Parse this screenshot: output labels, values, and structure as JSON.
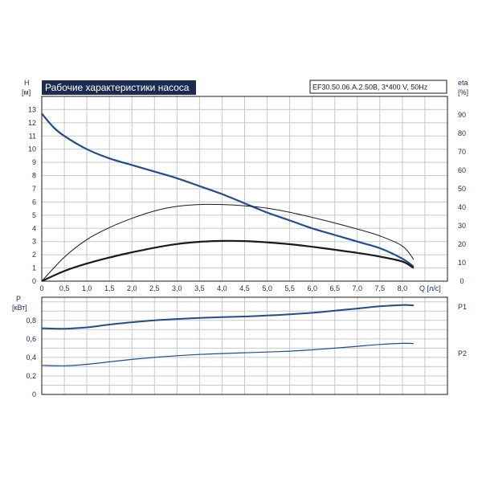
{
  "chart_data": [
    {
      "type": "line",
      "title": "Рабочие характеристики насоса",
      "model": "EF30.50.06.A.2.50B, 3*400 V, 50Hz",
      "xlabel": "Q [л/с]",
      "ylabel_left": [
        "H",
        "[м]"
      ],
      "ylabel_right": [
        "eta",
        "[%]"
      ],
      "xlim": [
        0,
        9
      ],
      "ylim_left": [
        0,
        14
      ],
      "ylim_right": [
        0,
        100
      ],
      "x_ticks": [
        "0",
        "0,5",
        "1,0",
        "1,5",
        "2,0",
        "2,5",
        "3,0",
        "3,5",
        "4,0",
        "4,5",
        "5,0",
        "5,5",
        "6,0",
        "6,5",
        "7,0",
        "7,5",
        "8,0"
      ],
      "y_left_ticks": [
        "0",
        "1",
        "2",
        "3",
        "4",
        "5",
        "6",
        "7",
        "8",
        "9",
        "10",
        "11",
        "12",
        "13"
      ],
      "y_right_ticks": [
        "0",
        "10",
        "20",
        "30",
        "40",
        "50",
        "60",
        "70",
        "80",
        "90"
      ],
      "grid": true,
      "series": [
        {
          "axis": "left",
          "color": "#1f4e8c",
          "x": [
            0,
            0.25,
            0.5,
            1.0,
            1.5,
            2.0,
            2.5,
            3.0,
            3.5,
            4.0,
            4.5,
            5.0,
            5.5,
            6.0,
            6.5,
            7.0,
            7.5,
            8.0,
            8.25
          ],
          "y": [
            12.7,
            11.7,
            11.0,
            10.0,
            9.3,
            8.8,
            8.3,
            7.8,
            7.2,
            6.6,
            5.9,
            5.2,
            4.6,
            4.0,
            3.5,
            3.0,
            2.5,
            1.7,
            1.1
          ]
        },
        {
          "axis": "right",
          "color": "#1a1a1a",
          "x": [
            0,
            0.5,
            1.0,
            1.5,
            2.0,
            2.5,
            3.0,
            3.5,
            4.0,
            4.5,
            5.0,
            5.5,
            6.0,
            6.5,
            7.0,
            7.5,
            8.0,
            8.25
          ],
          "y": [
            0,
            13,
            22.5,
            29,
            34,
            38,
            40.5,
            41.5,
            41.5,
            40.8,
            39.5,
            37.3,
            34.5,
            31.5,
            28.2,
            24.5,
            19,
            11.8
          ]
        },
        {
          "axis": "right",
          "color": "#1a1a1a",
          "x": [
            0,
            0.5,
            1.0,
            1.5,
            2.0,
            2.5,
            3.0,
            3.5,
            4.0,
            4.5,
            5.0,
            5.5,
            6.0,
            6.5,
            7.0,
            7.5,
            8.0,
            8.25
          ],
          "y": [
            0,
            5.5,
            9.5,
            12.8,
            15.6,
            18.1,
            20.1,
            21.3,
            21.8,
            21.7,
            21,
            20,
            18.6,
            17,
            15.3,
            13.3,
            10.6,
            7.1
          ]
        }
      ]
    },
    {
      "type": "line",
      "ylabel": [
        "P",
        "[кВт]"
      ],
      "xlim": [
        0,
        9
      ],
      "ylim": [
        0,
        1.05
      ],
      "y_ticks": [
        "0",
        "0,2",
        "0,4",
        "0,6",
        "0,8"
      ],
      "grid": true,
      "series": [
        {
          "name": "P1",
          "color": "#1f4e8c",
          "x": [
            0,
            0.5,
            1.0,
            1.5,
            2.0,
            2.5,
            3.0,
            3.5,
            4.0,
            4.5,
            5.0,
            5.5,
            6.0,
            6.5,
            7.0,
            7.5,
            8.0,
            8.25
          ],
          "y": [
            0.715,
            0.71,
            0.725,
            0.755,
            0.78,
            0.8,
            0.815,
            0.827,
            0.835,
            0.842,
            0.852,
            0.865,
            0.882,
            0.905,
            0.928,
            0.952,
            0.966,
            0.962
          ]
        },
        {
          "name": "P2",
          "color": "#1f4e8c",
          "x": [
            0,
            0.5,
            1.0,
            1.5,
            2.0,
            2.5,
            3.0,
            3.5,
            4.0,
            4.5,
            5.0,
            5.5,
            6.0,
            6.5,
            7.0,
            7.5,
            8.0,
            8.25
          ],
          "y": [
            0.315,
            0.31,
            0.325,
            0.352,
            0.378,
            0.4,
            0.418,
            0.432,
            0.442,
            0.45,
            0.458,
            0.468,
            0.482,
            0.5,
            0.52,
            0.54,
            0.552,
            0.55
          ]
        }
      ]
    }
  ]
}
